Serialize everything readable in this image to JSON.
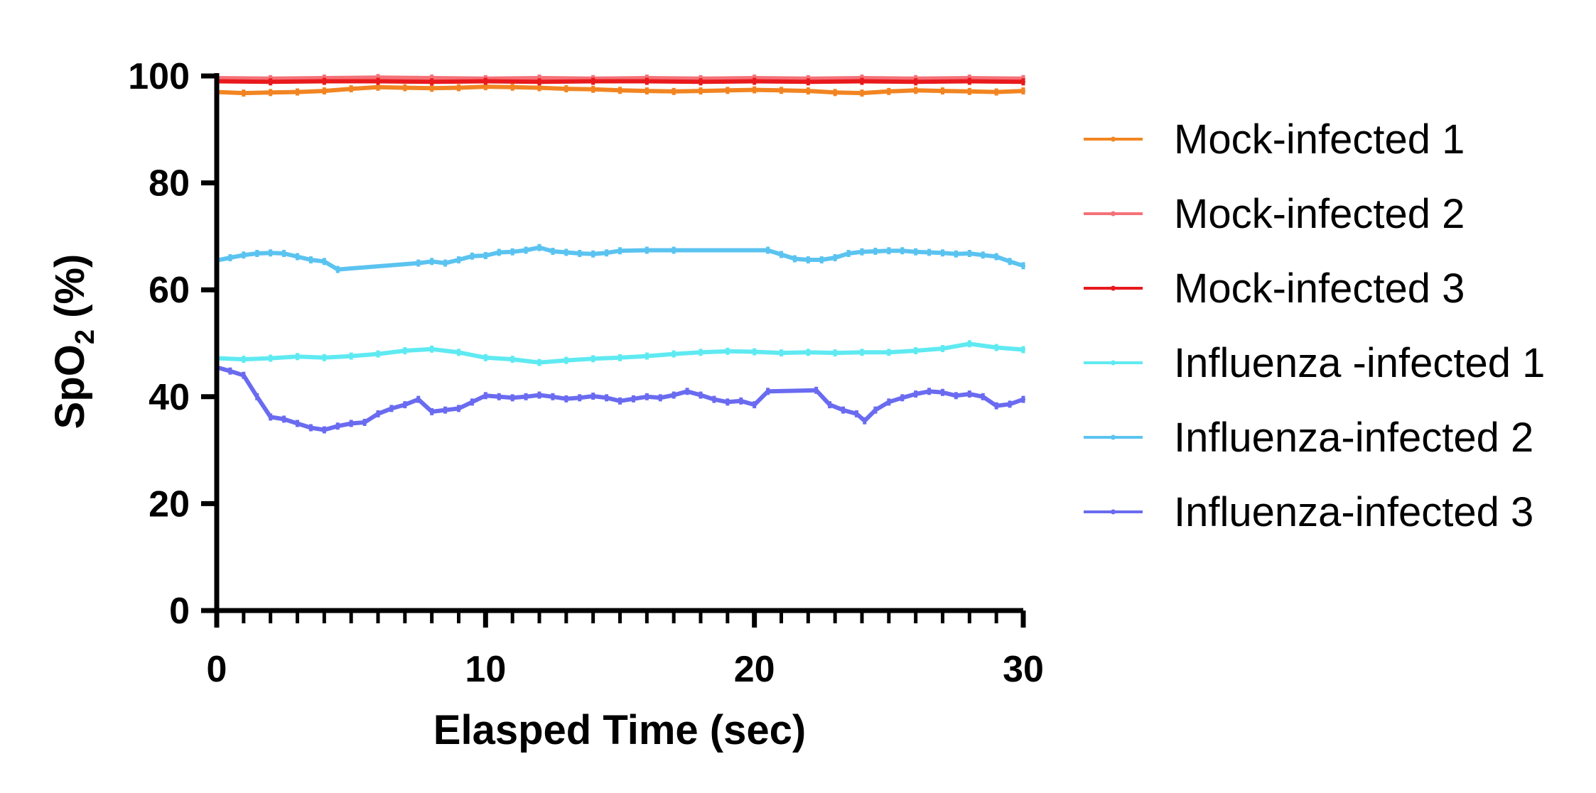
{
  "chart_data": {
    "type": "line",
    "xlabel": "Elasped Time (sec)",
    "ylabel_main": "SpO",
    "ylabel_sub": "2",
    "ylabel_unit": " (%)",
    "xlim": [
      0,
      30
    ],
    "ylim": [
      0,
      100
    ],
    "x_ticks": [
      0,
      10,
      20,
      30
    ],
    "x_tick_labels": [
      "0",
      "10",
      "20",
      "30"
    ],
    "y_ticks": [
      0,
      20,
      40,
      60,
      80,
      100
    ],
    "y_tick_labels": [
      "0",
      "20",
      "40",
      "60",
      "80",
      "100"
    ],
    "x_minor_step": 1,
    "grid": false,
    "legend_position": "right",
    "series": [
      {
        "name": "Mock-infected 1",
        "color": "#F28522",
        "x": [
          0,
          1,
          2,
          3,
          4,
          5,
          6,
          7,
          8,
          9,
          10,
          11,
          12,
          13,
          14,
          15,
          16,
          17,
          18,
          19,
          20,
          21,
          22,
          23,
          24,
          25,
          26,
          27,
          28,
          29,
          30
        ],
        "y": [
          97.0,
          96.8,
          96.9,
          97.0,
          97.2,
          97.6,
          97.9,
          97.8,
          97.7,
          97.8,
          98.0,
          97.9,
          97.8,
          97.6,
          97.5,
          97.3,
          97.2,
          97.1,
          97.2,
          97.3,
          97.4,
          97.3,
          97.2,
          96.9,
          96.8,
          97.1,
          97.3,
          97.2,
          97.1,
          97.0,
          97.2
        ]
      },
      {
        "name": "Mock-infected 2",
        "color": "#F47278",
        "x": [
          0,
          2,
          4,
          6,
          8,
          10,
          12,
          14,
          16,
          18,
          20,
          22,
          24,
          26,
          28,
          30
        ],
        "y": [
          99.6,
          99.5,
          99.6,
          99.7,
          99.6,
          99.5,
          99.6,
          99.5,
          99.6,
          99.5,
          99.6,
          99.5,
          99.6,
          99.5,
          99.6,
          99.5
        ]
      },
      {
        "name": "Mock-infected 3",
        "color": "#E8191C",
        "x": [
          0,
          2,
          4,
          6,
          8,
          10,
          12,
          14,
          16,
          18,
          20,
          22,
          24,
          26,
          28,
          30
        ],
        "y": [
          99.0,
          98.9,
          99.0,
          99.0,
          98.9,
          99.0,
          98.9,
          99.0,
          99.0,
          98.9,
          99.0,
          98.9,
          99.0,
          98.9,
          99.0,
          98.9
        ]
      },
      {
        "name": "Influenza -infected 1",
        "color": "#5FEAF2",
        "x": [
          0,
          1,
          2,
          3,
          4,
          5,
          6,
          7,
          8,
          9,
          10,
          11,
          12,
          13,
          14,
          15,
          16,
          17,
          18,
          19,
          20,
          21,
          22,
          23,
          24,
          25,
          26,
          27,
          28,
          29,
          30
        ],
        "y": [
          47.2,
          47.0,
          47.2,
          47.5,
          47.3,
          47.6,
          48.0,
          48.6,
          48.9,
          48.3,
          47.3,
          47.0,
          46.4,
          46.8,
          47.1,
          47.3,
          47.6,
          48.0,
          48.3,
          48.5,
          48.4,
          48.2,
          48.3,
          48.2,
          48.3,
          48.3,
          48.6,
          49.0,
          49.9,
          49.2,
          48.8
        ]
      },
      {
        "name": "Influenza-infected 2",
        "color": "#5BC3F0",
        "x": [
          0,
          0.5,
          1,
          1.5,
          2,
          2.5,
          3,
          3.5,
          4,
          4.5,
          7.5,
          8,
          8.5,
          9,
          9.5,
          10,
          10.5,
          11,
          11.5,
          12,
          12.5,
          13,
          13.5,
          14,
          14.5,
          15,
          16,
          17,
          20.5,
          21,
          21.5,
          22,
          22.5,
          23,
          23.5,
          24,
          24.5,
          25,
          25.5,
          26,
          26.5,
          27,
          27.5,
          28,
          28.5,
          29,
          29.5,
          30
        ],
        "y": [
          65.5,
          66.0,
          66.5,
          66.8,
          66.9,
          66.8,
          66.2,
          65.6,
          65.3,
          63.8,
          65.0,
          65.3,
          65.0,
          65.6,
          66.3,
          66.4,
          67.0,
          67.1,
          67.4,
          67.9,
          67.2,
          67.0,
          66.8,
          66.7,
          66.9,
          67.3,
          67.4,
          67.4,
          67.4,
          66.6,
          65.8,
          65.6,
          65.6,
          66.0,
          66.8,
          67.1,
          67.2,
          67.3,
          67.3,
          67.1,
          67.0,
          66.9,
          66.7,
          66.8,
          66.5,
          66.2,
          65.3,
          64.5
        ]
      },
      {
        "name": "Influenza-infected 3",
        "color": "#6A6BF0",
        "x": [
          0,
          0.5,
          1,
          1.5,
          2,
          2.5,
          3,
          3.5,
          4,
          4.5,
          5,
          5.5,
          6,
          6.5,
          7,
          7.5,
          8,
          8.5,
          9,
          9.5,
          10,
          10.5,
          11,
          11.5,
          12,
          12.5,
          13,
          13.5,
          14,
          14.5,
          15,
          15.5,
          16,
          16.5,
          17,
          17.5,
          18,
          18.5,
          19,
          19.5,
          20,
          20.5,
          22.3,
          22.8,
          23.3,
          23.8,
          24.1,
          24.5,
          25,
          25.5,
          26,
          26.5,
          27,
          27.5,
          28,
          28.5,
          29,
          29.5,
          30
        ],
        "y": [
          45.5,
          44.8,
          44.0,
          40.0,
          36.2,
          35.8,
          35.0,
          34.2,
          33.8,
          34.5,
          35.0,
          35.2,
          36.8,
          37.8,
          38.5,
          39.5,
          37.2,
          37.5,
          37.8,
          39.0,
          40.2,
          40.0,
          39.8,
          40.0,
          40.3,
          40.0,
          39.6,
          39.8,
          40.1,
          39.8,
          39.2,
          39.6,
          40.0,
          39.8,
          40.3,
          41.0,
          40.3,
          39.5,
          39.0,
          39.2,
          38.5,
          41.0,
          41.2,
          38.5,
          37.5,
          36.8,
          35.5,
          37.5,
          39.0,
          39.8,
          40.5,
          41.0,
          40.8,
          40.2,
          40.5,
          40.0,
          38.3,
          38.6,
          39.5
        ]
      }
    ]
  }
}
